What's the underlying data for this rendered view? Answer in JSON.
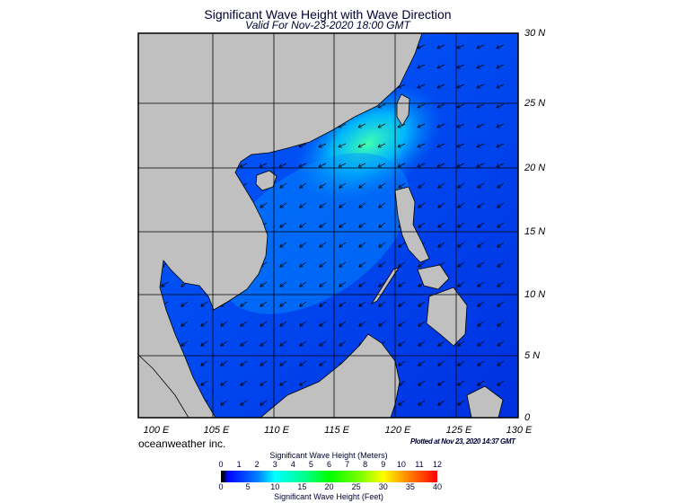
{
  "header": {
    "title": "Significant Wave Height with Wave Direction",
    "subtitle": "Valid For Nov-23-2020 18:00 GMT"
  },
  "map": {
    "lat_labels": [
      "30 N",
      "25 N",
      "20 N",
      "15 N",
      "10 N",
      "5 N",
      "0"
    ],
    "lon_labels": [
      "100 E",
      "105 E",
      "110 E",
      "115 E",
      "120 E",
      "125 E",
      "130 E"
    ],
    "region": "South China Sea",
    "land_color": "#c0c0c0",
    "ocean_color": "#0040ff",
    "arrow_direction": "southwest"
  },
  "footer": {
    "brand": "oceanweather inc.",
    "plotted": "Plotted at Nov 23, 2020 14:37 GMT"
  },
  "colorbar": {
    "title_meters": "Significant Wave Height (Meters)",
    "title_feet": "Significant Wave Height (Feet)",
    "meters_ticks": [
      "0",
      "1",
      "2",
      "3",
      "4",
      "5",
      "6",
      "7",
      "8",
      "9",
      "10",
      "11",
      "12"
    ],
    "feet_ticks": [
      "0",
      "5",
      "10",
      "15",
      "20",
      "25",
      "30",
      "35",
      "40"
    ],
    "colors": [
      "#000000",
      "#0000ff",
      "#00ffff",
      "#00ff00",
      "#ffff00",
      "#ff0000"
    ]
  }
}
